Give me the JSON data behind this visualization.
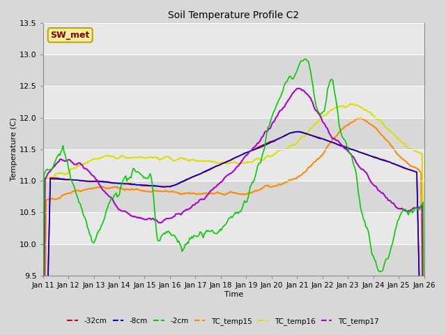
{
  "title": "Soil Temperature Profile C2",
  "xlabel": "Time",
  "ylabel": "Temperature (C)",
  "ylim": [
    9.5,
    13.5
  ],
  "xlim": [
    0,
    15
  ],
  "x_tick_labels": [
    "Jan 11",
    "Jan 12",
    "Jan 13",
    "Jan 14",
    "Jan 15",
    "Jan 16",
    "Jan 17",
    "Jan 18",
    "Jan 19",
    "Jan 20",
    "Jan 21",
    "Jan 22",
    "Jan 23",
    "Jan 24",
    "Jan 25",
    "Jan 26"
  ],
  "fig_facecolor": "#d8d8d8",
  "plot_bg_color": "#e0e0e0",
  "grid_color": "#ffffff",
  "annotation_text": "SW_met",
  "annotation_color": "#8b0000",
  "annotation_bg": "#f0f0a0",
  "annotation_border": "#c8a000",
  "series": {
    "neg32cm": {
      "color": "#cc0000",
      "label": "-32cm",
      "lw": 1.2,
      "zorder": 3
    },
    "neg8cm": {
      "color": "#0000cc",
      "label": "-8cm",
      "lw": 1.2,
      "zorder": 3
    },
    "neg2cm": {
      "color": "#00cc00",
      "label": "-2cm",
      "lw": 1.2,
      "zorder": 4
    },
    "TC15": {
      "color": "#ff8800",
      "label": "TC_temp15",
      "lw": 1.5,
      "zorder": 2
    },
    "TC16": {
      "color": "#dddd00",
      "label": "TC_temp16",
      "lw": 1.5,
      "zorder": 2
    },
    "TC17": {
      "color": "#aa00cc",
      "label": "TC_temp17",
      "lw": 1.5,
      "zorder": 3
    }
  },
  "n_points": 360,
  "days": 15
}
